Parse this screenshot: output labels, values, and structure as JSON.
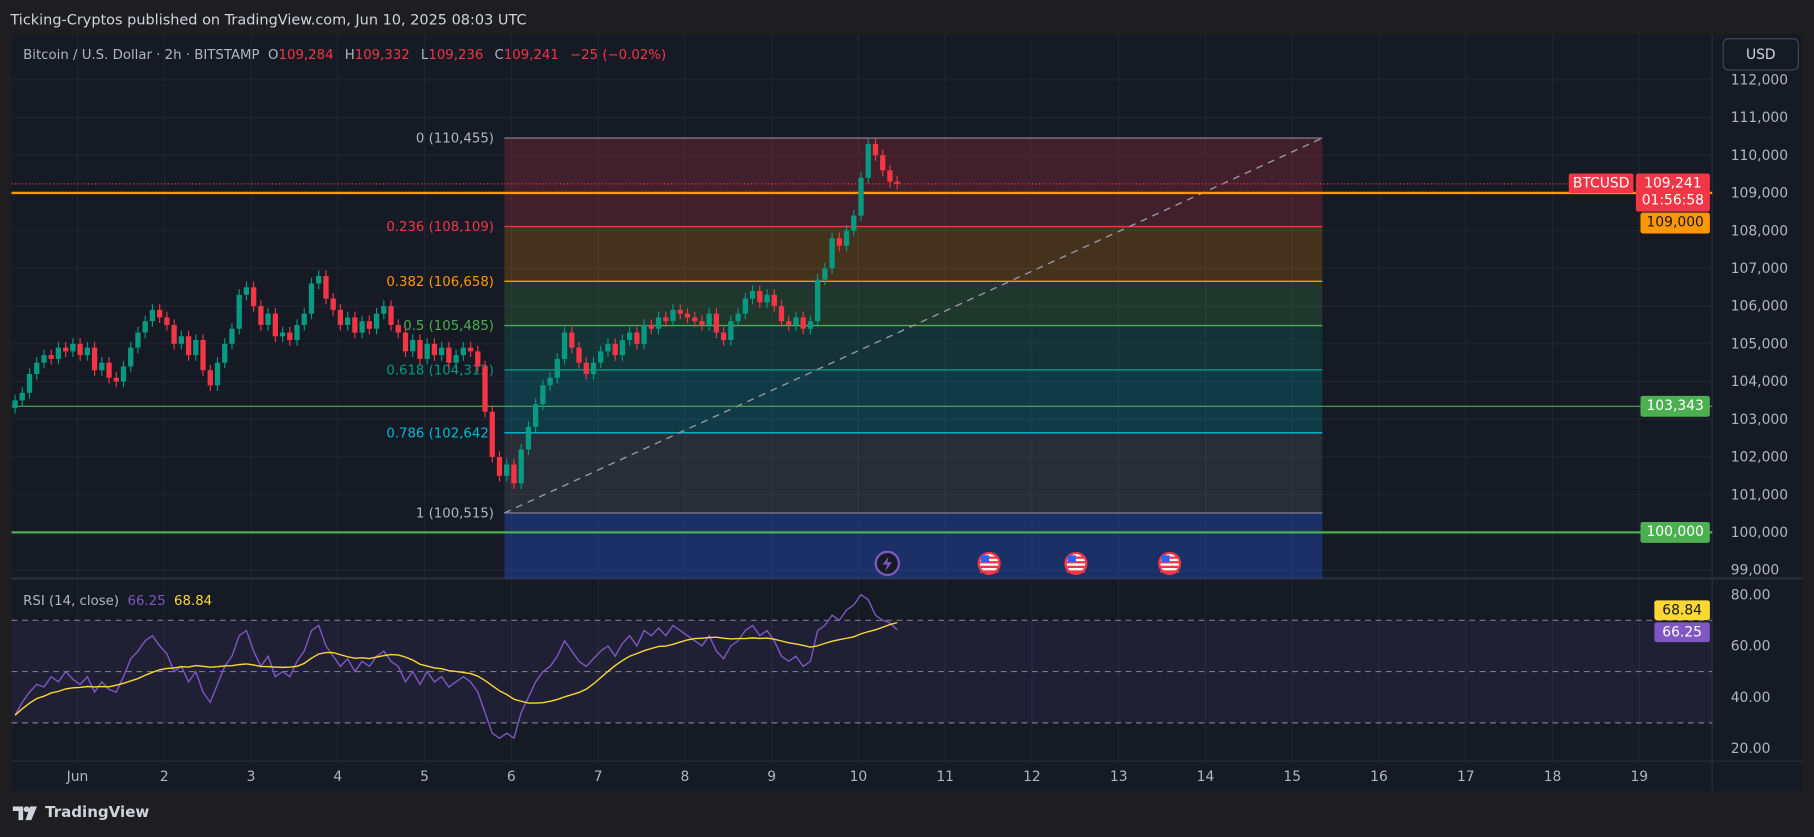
{
  "header": {
    "published": "Ticking-Cryptos published on TradingView.com, Jun 10, 2025 08:03 UTC"
  },
  "legend": {
    "symbol": "Bitcoin / U.S. Dollar · 2h · BITSTAMP",
    "o_label": "O",
    "o": "109,284",
    "h_label": "H",
    "h": "109,332",
    "l_label": "L",
    "l": "109,236",
    "c_label": "C",
    "c": "109,241",
    "change": "−25 (−0.02%)"
  },
  "currency_button": "USD",
  "price_axis": {
    "labels": [
      "112,000",
      "111,000",
      "110,000",
      "109,000",
      "108,000",
      "107,000",
      "106,000",
      "105,000",
      "104,000",
      "103,000",
      "102,000",
      "101,000",
      "100,000",
      "99,000"
    ],
    "values": [
      112000,
      111000,
      110000,
      109000,
      108000,
      107000,
      106000,
      105000,
      104000,
      103000,
      102000,
      101000,
      100000,
      99000
    ]
  },
  "price_tags": {
    "symbol": "BTCUSD",
    "last": "109,241",
    "countdown": "01:56:58",
    "level_109000": "109,000",
    "level_103343": "103,343",
    "level_100000": "100,000"
  },
  "horizontal_lines": [
    {
      "price": 109000,
      "color": "#ff9800"
    },
    {
      "price": 103343,
      "color": "#4caf50"
    },
    {
      "price": 100000,
      "color": "#4caf50"
    }
  ],
  "fib": {
    "levels": [
      {
        "ratio": "0",
        "price": 110455,
        "label": "0 (110,455)",
        "color": "#787b86"
      },
      {
        "ratio": "0.236",
        "price": 108109,
        "label": "0.236 (108,109)",
        "color": "#f23645"
      },
      {
        "ratio": "0.382",
        "price": 106658,
        "label": "0.382 (106,658)",
        "color": "#ff9800"
      },
      {
        "ratio": "0.5",
        "price": 105485,
        "label": "0.5 (105,485)",
        "color": "#4caf50"
      },
      {
        "ratio": "0.618",
        "price": 104312,
        "label": "0.618 (104,312)",
        "color": "#089981"
      },
      {
        "ratio": "0.786",
        "price": 102642,
        "label": "0.786 (102,642)",
        "color": "#00bcd4"
      },
      {
        "ratio": "1",
        "price": 100515,
        "label": "1 (100,515)",
        "color": "#787b86"
      }
    ],
    "extension_color": "#2962ff"
  },
  "time_axis": {
    "labels": [
      "Jun",
      "2",
      "3",
      "4",
      "5",
      "6",
      "7",
      "8",
      "9",
      "10",
      "11",
      "12",
      "13",
      "14",
      "15",
      "16",
      "17",
      "18",
      "19"
    ]
  },
  "candles_close": [
    103500,
    103700,
    104200,
    104500,
    104700,
    104600,
    104900,
    104800,
    105000,
    104700,
    104900,
    104300,
    104500,
    104100,
    104000,
    104400,
    104900,
    105300,
    105600,
    105900,
    105700,
    105500,
    105000,
    105200,
    104700,
    105100,
    104300,
    103900,
    104500,
    105000,
    105400,
    106300,
    106500,
    106000,
    105500,
    105800,
    105200,
    105300,
    105100,
    105500,
    105800,
    106600,
    106800,
    106200,
    105900,
    105500,
    105700,
    105300,
    105600,
    105400,
    105800,
    106000,
    105500,
    105300,
    104800,
    105100,
    104600,
    105000,
    104700,
    104900,
    104500,
    104700,
    104900,
    104800,
    104400,
    103200,
    102000,
    101500,
    101800,
    101300,
    102200,
    102800,
    103400,
    103900,
    104100,
    104600,
    105300,
    104900,
    104500,
    104200,
    104500,
    104800,
    105000,
    104700,
    105100,
    105300,
    105000,
    105500,
    105400,
    105700,
    105600,
    105900,
    105800,
    105700,
    105600,
    105500,
    105800,
    105300,
    105100,
    105600,
    105800,
    106200,
    106400,
    106100,
    106300,
    106000,
    105600,
    105500,
    105700,
    105400,
    105600,
    106700,
    107000,
    107800,
    107600,
    108000,
    108400,
    109400,
    110300,
    110000,
    109600,
    109300,
    109241
  ],
  "rsi": {
    "label": "RSI (14, close)",
    "value": "66.25",
    "ma_value": "68.84",
    "axis_labels": [
      "80.00",
      "60.00",
      "40.00",
      "20.00"
    ],
    "axis_values": [
      80,
      60,
      40,
      20
    ],
    "bands": [
      70,
      50,
      30
    ],
    "line_color": "#7e57c2",
    "ma_color": "#fdd835",
    "values": [
      33,
      38,
      42,
      45,
      44,
      48,
      46,
      50,
      47,
      45,
      48,
      42,
      46,
      43,
      42,
      48,
      55,
      58,
      62,
      64,
      60,
      57,
      50,
      52,
      46,
      50,
      42,
      38,
      45,
      52,
      56,
      64,
      66,
      58,
      52,
      56,
      48,
      50,
      48,
      54,
      58,
      66,
      68,
      60,
      56,
      52,
      55,
      50,
      54,
      52,
      56,
      58,
      54,
      52,
      46,
      50,
      45,
      50,
      46,
      48,
      44,
      46,
      48,
      46,
      42,
      34,
      26,
      24,
      26,
      24,
      34,
      40,
      46,
      50,
      52,
      56,
      62,
      58,
      54,
      52,
      55,
      58,
      60,
      56,
      61,
      64,
      60,
      66,
      64,
      67,
      64,
      68,
      66,
      64,
      62,
      60,
      64,
      58,
      55,
      60,
      62,
      66,
      68,
      64,
      66,
      62,
      56,
      54,
      56,
      52,
      54,
      66,
      68,
      72,
      70,
      74,
      76,
      80,
      78,
      72,
      70,
      69,
      66.25
    ]
  },
  "events": [
    "lightning-icon",
    "us-flag-icon",
    "us-flag-icon",
    "us-flag-icon"
  ],
  "colors": {
    "up": "#089981",
    "down": "#f23645",
    "background": "#161a25"
  },
  "footer": {
    "brand": "TradingView"
  }
}
